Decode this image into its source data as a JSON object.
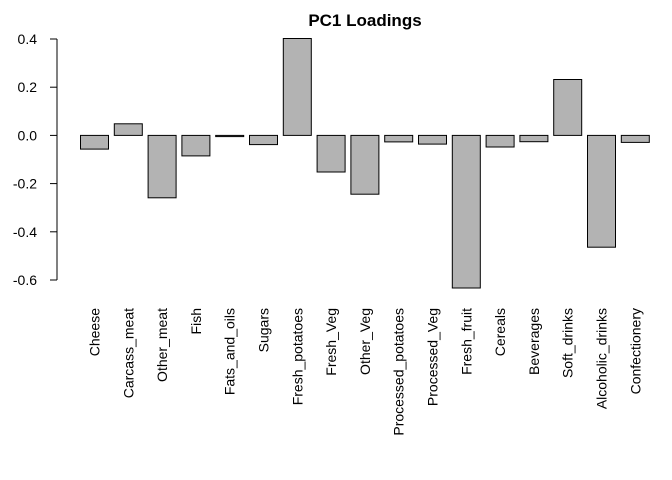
{
  "chart_data": {
    "type": "bar",
    "title": "PC1 Loadings",
    "xlabel": "",
    "ylabel": "",
    "categories": [
      "Cheese",
      "Carcass_meat",
      "Other_meat",
      "Fish",
      "Fats_and_oils",
      "Sugars",
      "Fresh_potatoes",
      "Fresh_Veg",
      "Other_Veg",
      "Processed_potatoes",
      "Processed_Veg",
      "Fresh_fruit",
      "Cereals",
      "Beverages",
      "Soft_drinks",
      "Alcoholic_drinks",
      "Confectionery"
    ],
    "values": [
      -0.057,
      0.048,
      -0.259,
      -0.085,
      -0.005,
      -0.038,
      0.402,
      -0.152,
      -0.244,
      -0.027,
      -0.036,
      -0.633,
      -0.048,
      -0.026,
      0.232,
      -0.464,
      -0.029
    ],
    "yticks": [
      -0.6,
      -0.4,
      -0.2,
      0.0,
      0.2,
      0.4
    ],
    "ytick_labels": [
      "-0.6",
      "-0.4",
      "-0.2",
      "0.0",
      "0.2",
      "0.4"
    ],
    "ylim": [
      -0.6,
      0.4
    ],
    "grid": false,
    "bar_color": "#b3b3b3"
  }
}
